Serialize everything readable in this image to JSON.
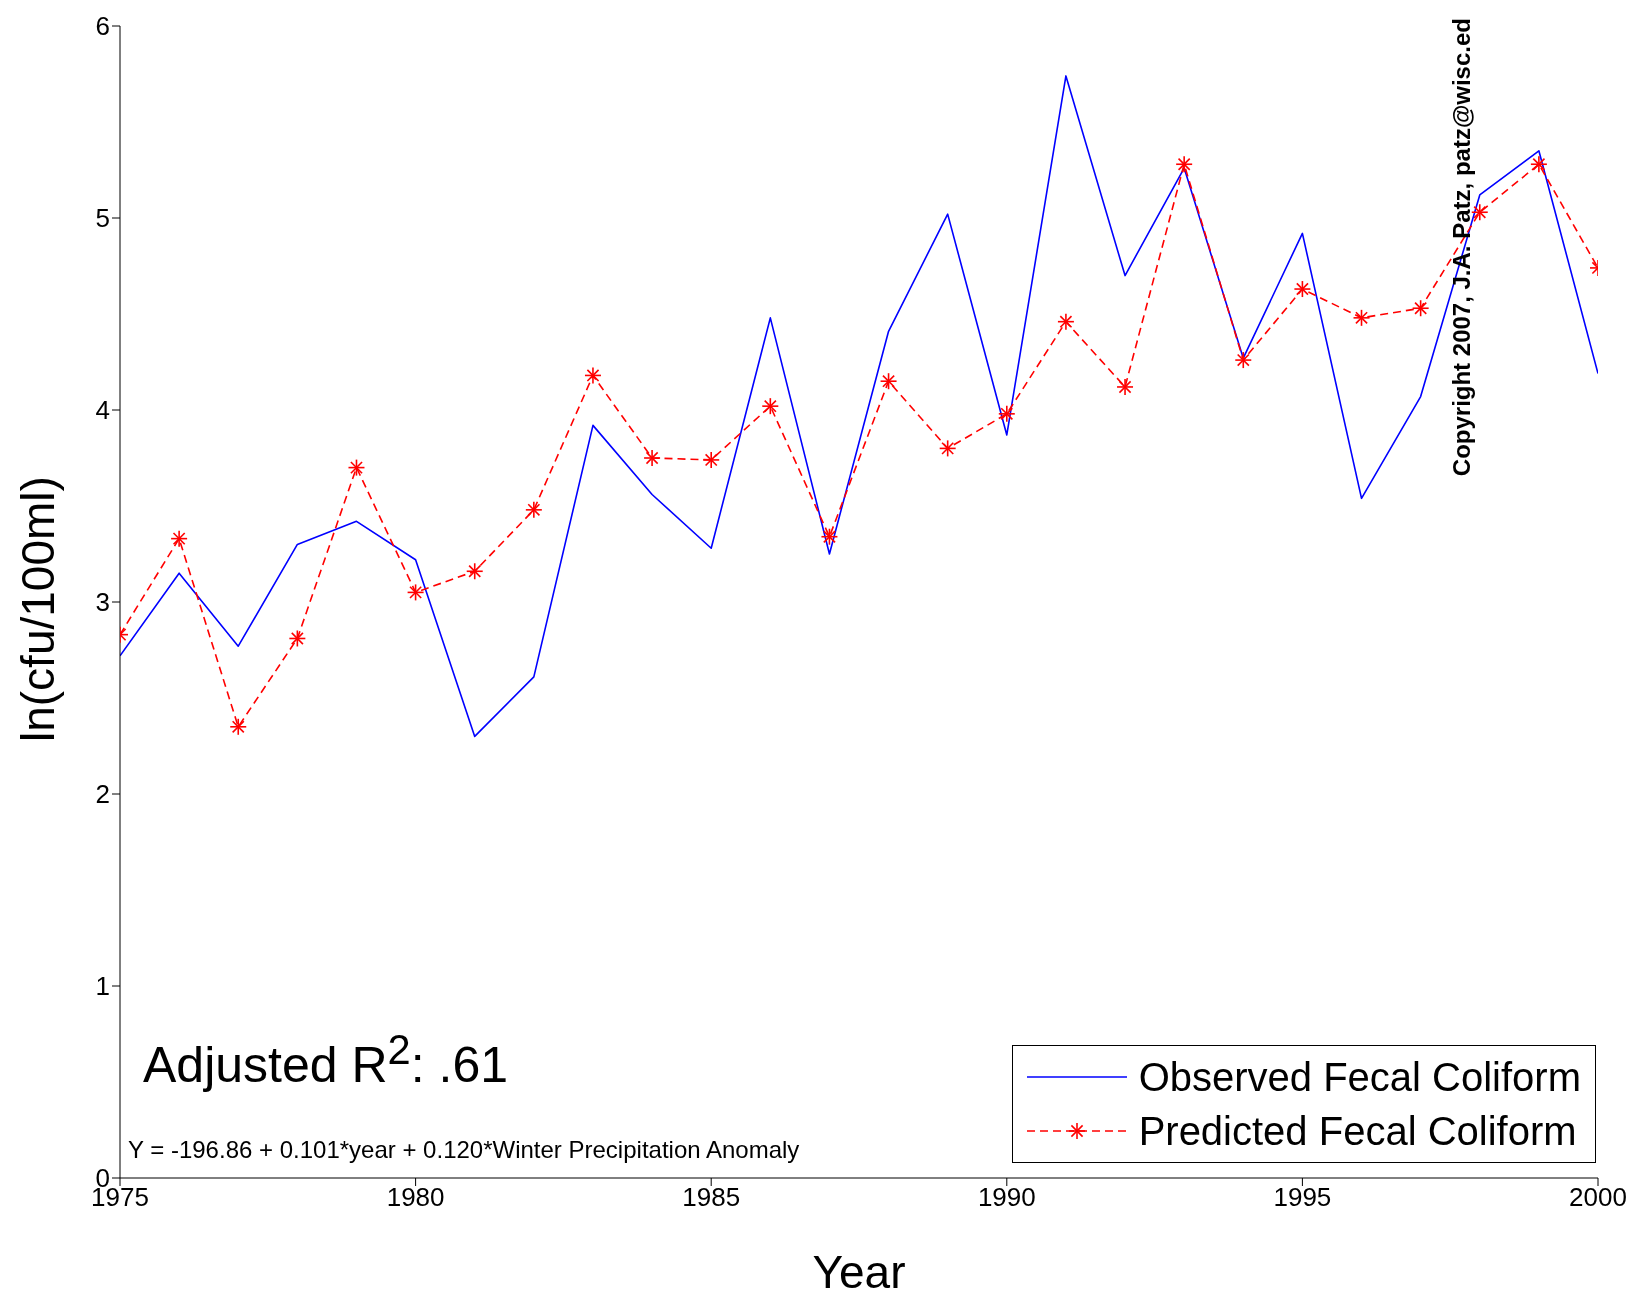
{
  "chart_data": {
    "type": "line",
    "xlabel": "Year",
    "ylabel": "ln(cfu/100ml)",
    "x": [
      1975,
      1976,
      1977,
      1978,
      1979,
      1980,
      1981,
      1982,
      1983,
      1984,
      1985,
      1986,
      1987,
      1988,
      1989,
      1990,
      1991,
      1992,
      1993,
      1994,
      1995,
      1996,
      1997,
      1998,
      1999,
      2000
    ],
    "series": [
      {
        "name": "Observed Fecal Coliform",
        "color": "#0000ff",
        "marker": "none",
        "line_style": "solid",
        "values": [
          2.72,
          3.15,
          2.77,
          3.3,
          3.42,
          3.22,
          2.3,
          2.61,
          3.92,
          3.56,
          3.28,
          4.48,
          3.25,
          4.41,
          5.02,
          3.87,
          5.74,
          4.7,
          5.26,
          4.27,
          4.92,
          3.54,
          4.07,
          5.12,
          5.35,
          4.19
        ]
      },
      {
        "name": "Predicted Fecal Coliform",
        "color": "#ff0000",
        "marker": "cross",
        "line_style": "dashed",
        "values": [
          2.83,
          3.33,
          2.35,
          2.81,
          3.7,
          3.05,
          3.16,
          3.48,
          4.18,
          3.75,
          3.74,
          4.02,
          3.34,
          4.15,
          3.8,
          3.98,
          4.46,
          4.12,
          5.28,
          4.26,
          4.63,
          4.48,
          4.53,
          5.03,
          5.28,
          4.74
        ]
      }
    ],
    "xlim": [
      1975,
      2000
    ],
    "xticks": [
      1975,
      1980,
      1985,
      1990,
      1995,
      2000
    ],
    "ylim": [
      0,
      6
    ],
    "yticks": [
      0,
      1,
      2,
      3,
      4,
      5,
      6
    ],
    "grid": false,
    "legend": "bottom right",
    "annotations": [
      "Adjusted R$^{2}$: .61",
      "Y = -196.86 + 0.101*year + 0.120*Winter Precipitation Anomaly",
      "Copyright 2007, J.A. Patz, patz@wisc.ed"
    ]
  }
}
